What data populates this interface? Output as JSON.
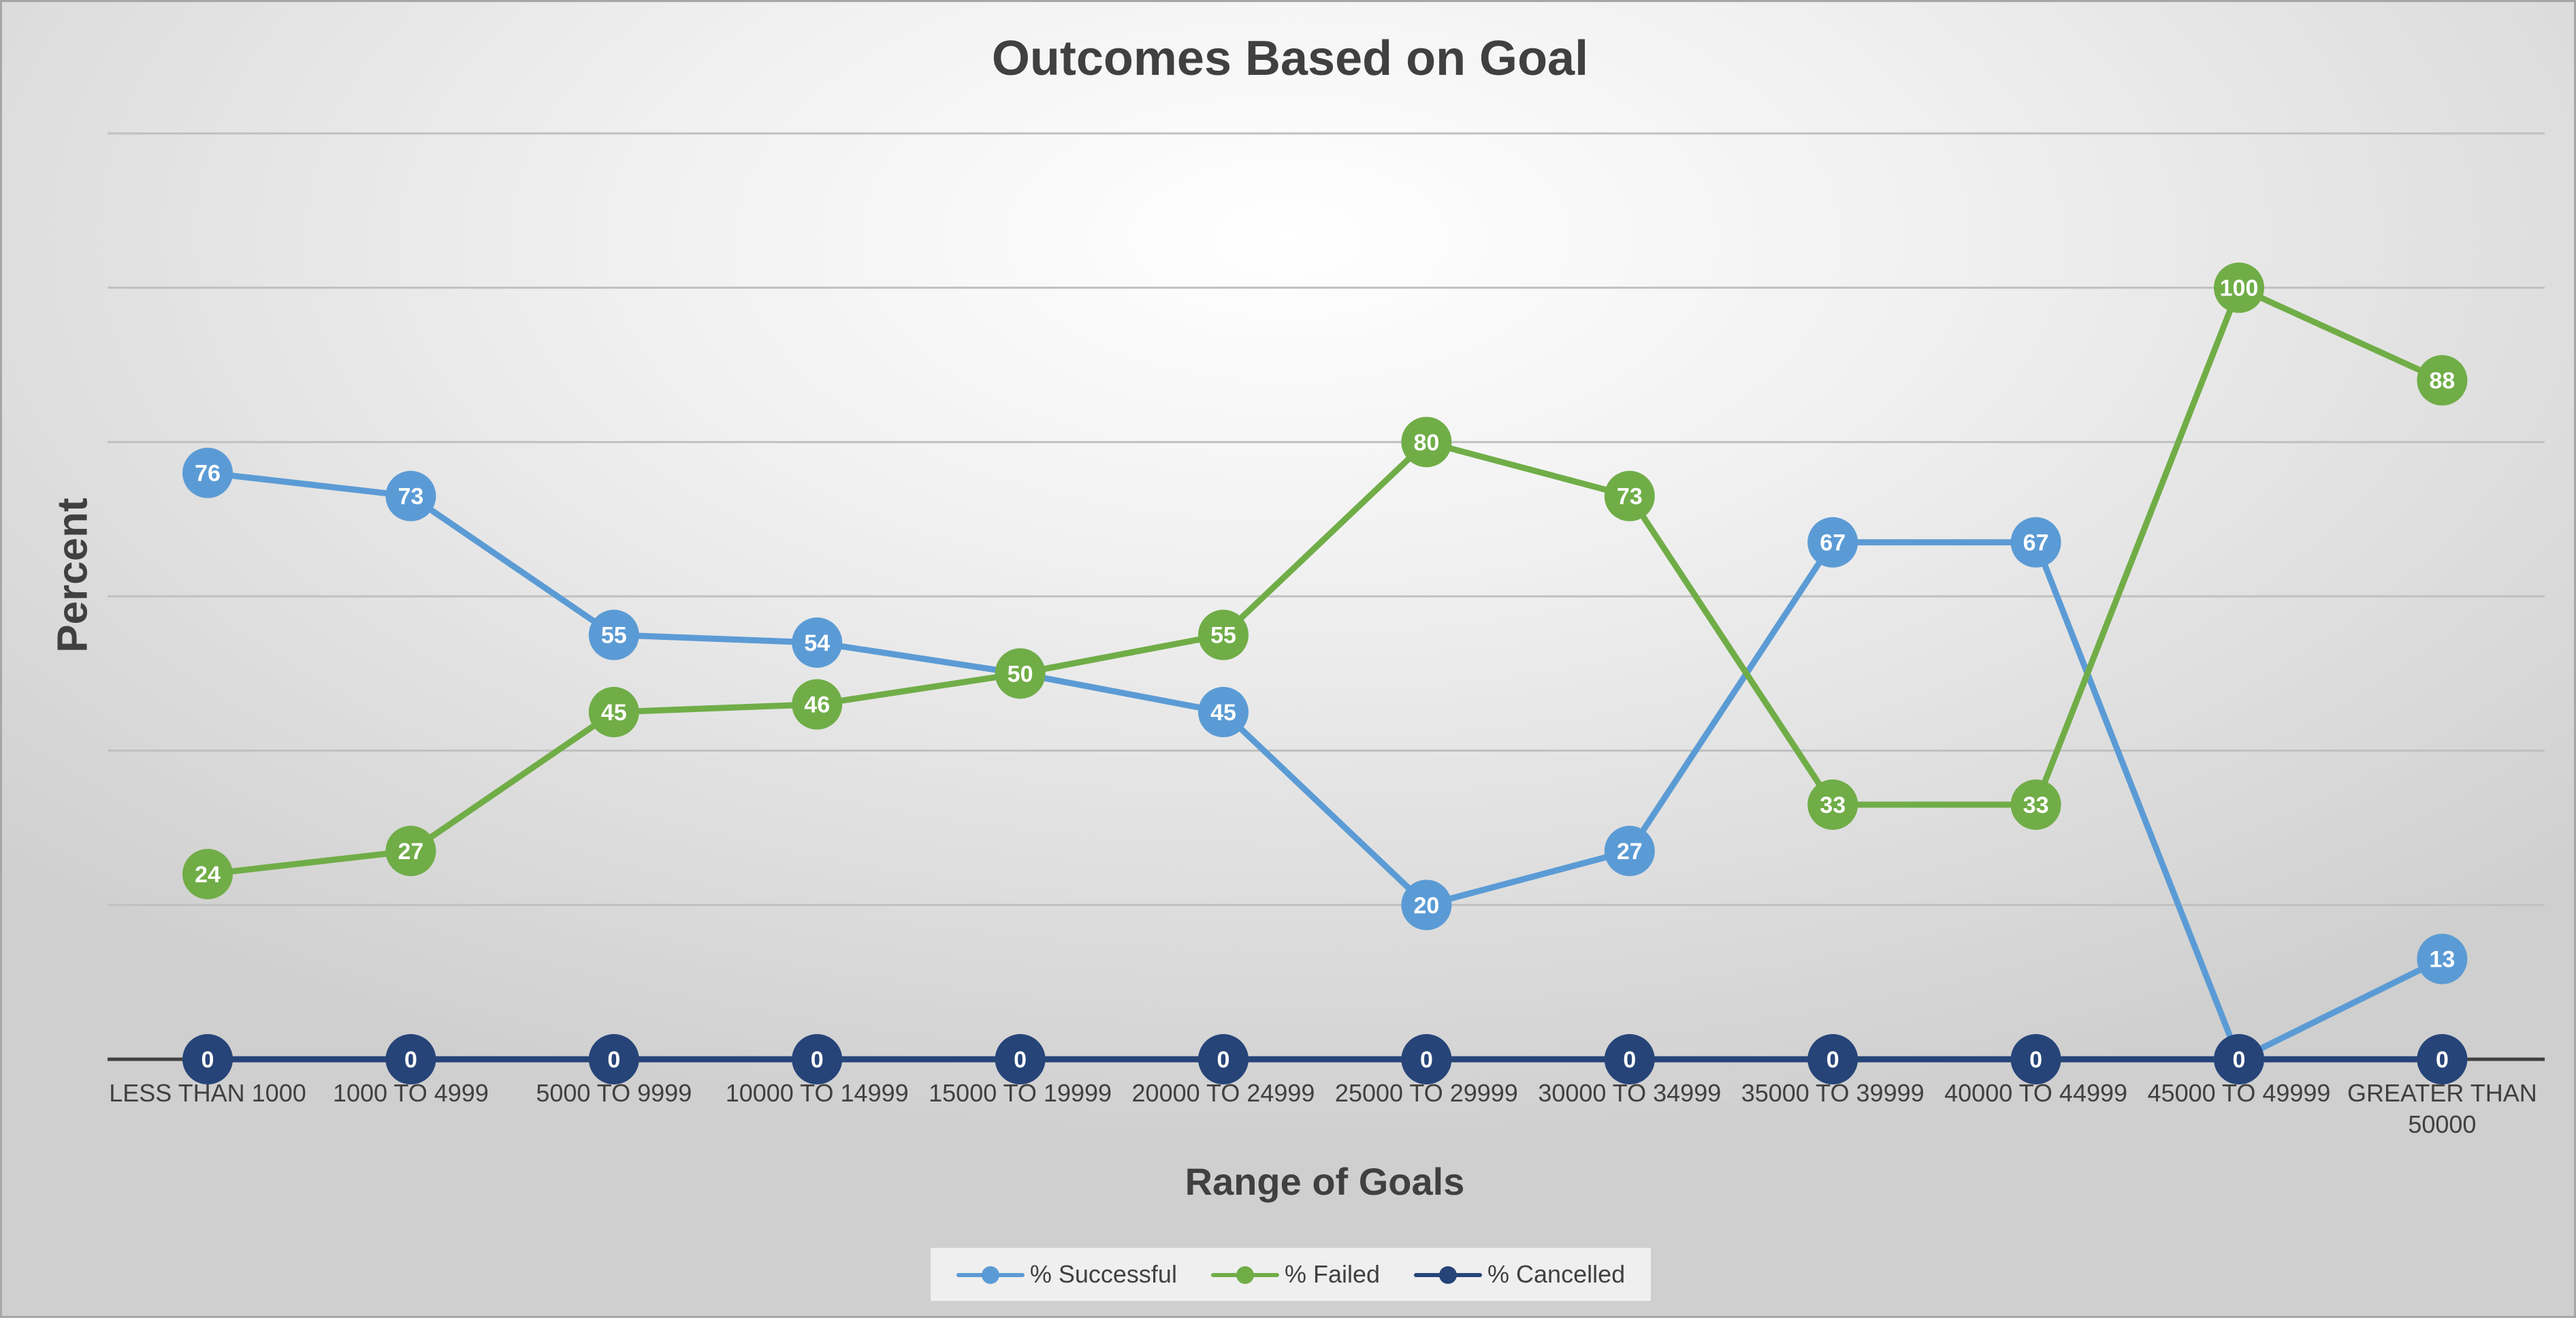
{
  "chart_data": {
    "type": "line",
    "title": "Outcomes Based on Goal",
    "xlabel": "Range of Goals",
    "ylabel": "Percent",
    "ylim": [
      0,
      120
    ],
    "grid": true,
    "legend_position": "bottom",
    "categories": [
      "LESS THAN 1000",
      "1000 TO 4999",
      "5000 TO 9999",
      "10000 TO 14999",
      "15000 TO 19999",
      "20000 TO 24999",
      "25000 TO 29999",
      "30000 TO 34999",
      "35000 TO 39999",
      "40000 TO 44999",
      "45000 TO 49999",
      "GREATER THAN 50000"
    ],
    "series": [
      {
        "name": "% Successful",
        "color": "#5b9bd5",
        "values": [
          76,
          73,
          55,
          54,
          50,
          45,
          20,
          27,
          67,
          67,
          0,
          13
        ]
      },
      {
        "name": "% Failed",
        "color": "#70ad47",
        "values": [
          24,
          27,
          45,
          46,
          50,
          55,
          80,
          73,
          33,
          33,
          100,
          88
        ]
      },
      {
        "name": "% Cancelled",
        "color": "#264478",
        "values": [
          0,
          0,
          0,
          0,
          0,
          0,
          0,
          0,
          0,
          0,
          0,
          0
        ]
      }
    ],
    "colors": {
      "gridline": "#c0c0c0",
      "axis": "#404040",
      "text": "#404040"
    }
  }
}
